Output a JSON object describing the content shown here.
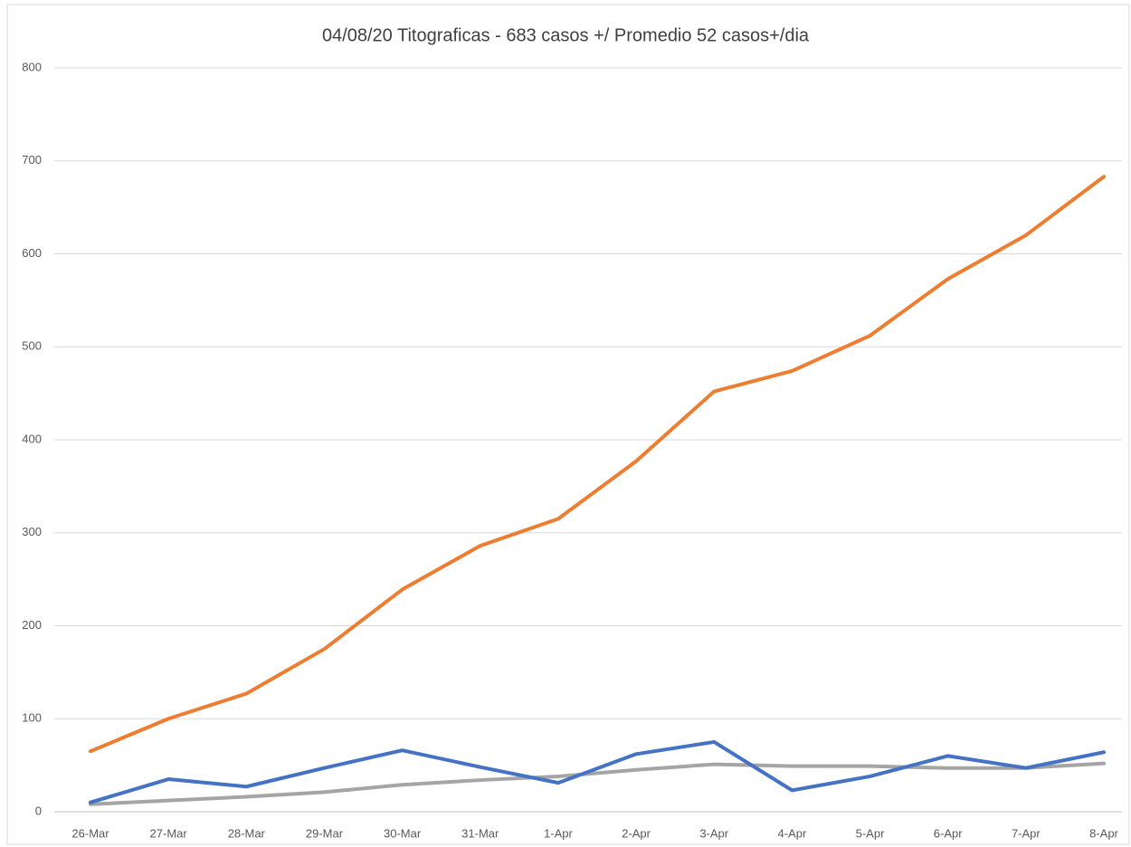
{
  "chart_data": {
    "type": "line",
    "title": "04/08/20 Titograficas - 683 casos +/ Promedio 52 casos+/dia",
    "categories": [
      "26-Mar",
      "27-Mar",
      "28-Mar",
      "29-Mar",
      "30-Mar",
      "31-Mar",
      "1-Apr",
      "2-Apr",
      "3-Apr",
      "4-Apr",
      "5-Apr",
      "6-Apr",
      "7-Apr",
      "8-Apr"
    ],
    "series": [
      {
        "color": "#ed7d31",
        "values": [
          65,
          100,
          127,
          175,
          239,
          286,
          315,
          377,
          452,
          474,
          512,
          573,
          620,
          683
        ]
      },
      {
        "color": "#4472c4",
        "values": [
          10,
          35,
          27,
          47,
          66,
          48,
          31,
          62,
          75,
          23,
          38,
          60,
          47,
          64
        ]
      },
      {
        "color": "#a5a5a5",
        "values": [
          8,
          12,
          16,
          21,
          29,
          34,
          38,
          45,
          51,
          49,
          49,
          47,
          47,
          52
        ]
      }
    ],
    "ylim": [
      0,
      800
    ],
    "yticks": [
      0,
      100,
      200,
      300,
      400,
      500,
      600,
      700,
      800
    ],
    "grid": true
  }
}
